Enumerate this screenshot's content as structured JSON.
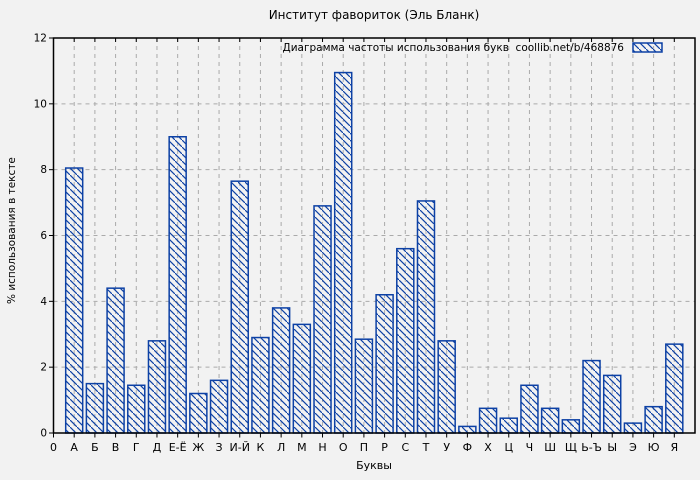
{
  "chart_data": {
    "type": "bar",
    "title": "Институт фавориток (Эль Бланк)",
    "legend_label": "Диаграмма частоты использования букв  coollib.net/b/468876",
    "xlabel": "Буквы",
    "ylabel": "% использования в тексте",
    "ylim": [
      0,
      12
    ],
    "yticks": [
      0,
      2,
      4,
      6,
      8,
      10,
      12
    ],
    "grid": true,
    "legend_position": "top-right-inside",
    "bar_style": "diagonal-hatch",
    "categories": [
      "0",
      "А",
      "Б",
      "В",
      "Г",
      "Д",
      "Е-Ё",
      "Ж",
      "З",
      "И-Й",
      "К",
      "Л",
      "М",
      "Н",
      "О",
      "П",
      "Р",
      "С",
      "Т",
      "У",
      "Ф",
      "Х",
      "Ц",
      "Ч",
      "Ш",
      "Щ",
      "Ь-Ъ",
      "Ы",
      "Э",
      "Ю",
      "Я"
    ],
    "values": [
      null,
      8.05,
      1.5,
      4.4,
      1.45,
      2.8,
      9.0,
      1.2,
      1.6,
      7.65,
      2.9,
      3.8,
      3.3,
      6.9,
      10.95,
      2.85,
      4.2,
      5.6,
      7.05,
      2.8,
      0.2,
      0.75,
      0.45,
      1.45,
      0.75,
      0.4,
      2.2,
      1.75,
      0.3,
      0.8,
      2.7
    ],
    "colors": {
      "bar": "#0d41a5",
      "grid": "#aaaaaa",
      "axis": "#000000",
      "background": "#f2f2f2",
      "text": "#000000"
    }
  }
}
